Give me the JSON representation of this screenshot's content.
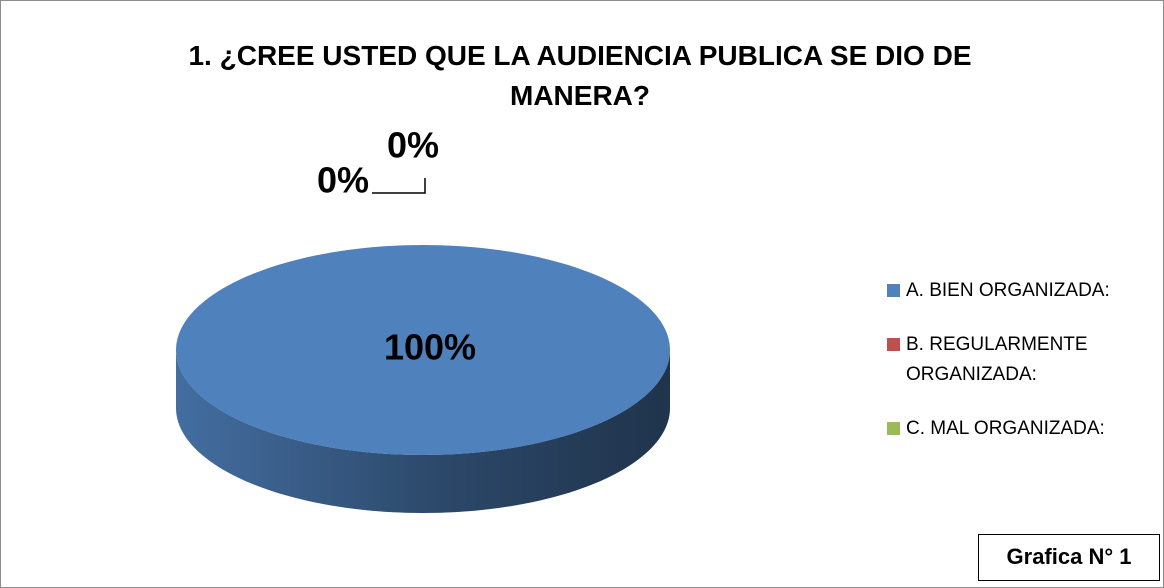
{
  "chart_data": {
    "type": "pie",
    "title": "1. ¿CREE USTED QUE LA AUDIENCIA PUBLICA SE DIO DE MANERA?",
    "categories": [
      "A. BIEN ORGANIZADA:",
      "B. REGULARMENTE ORGANIZADA:",
      "C. MAL ORGANIZADA:"
    ],
    "values": [
      100,
      0,
      0
    ],
    "value_labels": [
      "100%",
      "0%",
      "0%"
    ],
    "colors": [
      "#4f81bd",
      "#c0504d",
      "#9bbb59"
    ],
    "legend": "right",
    "annotation": "Grafica N° 1"
  }
}
